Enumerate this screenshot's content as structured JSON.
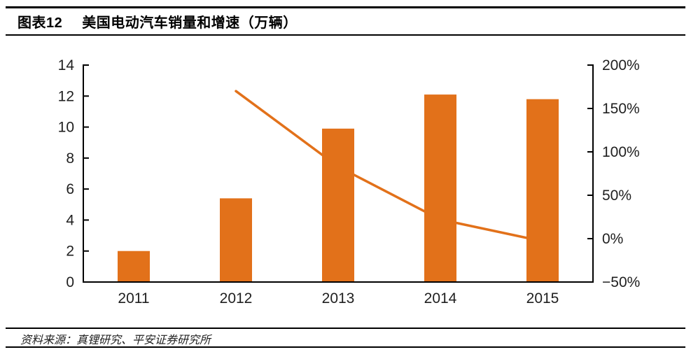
{
  "header": {
    "tag": "图表12",
    "title": "美国电动汽车销量和增速（万辆）"
  },
  "footer": {
    "source": "资料来源：真锂研究、平安证券研究所"
  },
  "chart_data": {
    "type": "bar+line",
    "title": "美国电动汽车销量和增速（万辆）",
    "categories": [
      "2011",
      "2012",
      "2013",
      "2014",
      "2015"
    ],
    "series": [
      {
        "name": "销量（万辆）",
        "type": "bar",
        "axis": "left",
        "values": [
          2.0,
          5.4,
          9.9,
          12.1,
          11.8
        ]
      },
      {
        "name": "增速",
        "type": "line",
        "axis": "right",
        "values": [
          null,
          170,
          83,
          22,
          -3
        ]
      }
    ],
    "left_axis": {
      "min": 0,
      "max": 14,
      "step": 2,
      "ticks": [
        {
          "value": 0,
          "label": "0"
        },
        {
          "value": 2,
          "label": "2"
        },
        {
          "value": 4,
          "label": "4"
        },
        {
          "value": 6,
          "label": "6"
        },
        {
          "value": 8,
          "label": "8"
        },
        {
          "value": 10,
          "label": "10"
        },
        {
          "value": 12,
          "label": "12"
        },
        {
          "value": 14,
          "label": "14"
        }
      ]
    },
    "right_axis": {
      "min": -50,
      "max": 200,
      "step": 50,
      "ticks": [
        {
          "value": -50,
          "label": "−50%"
        },
        {
          "value": 0,
          "label": "0%"
        },
        {
          "value": 50,
          "label": "50%"
        },
        {
          "value": 100,
          "label": "100%"
        },
        {
          "value": 150,
          "label": "150%"
        },
        {
          "value": 200,
          "label": "200%"
        }
      ]
    },
    "legend": "none",
    "grid": "off",
    "bar_color": "#e2711a",
    "line_color": "#e2711a",
    "axis_color": "#000000",
    "label_color": "#1f1f1f"
  }
}
